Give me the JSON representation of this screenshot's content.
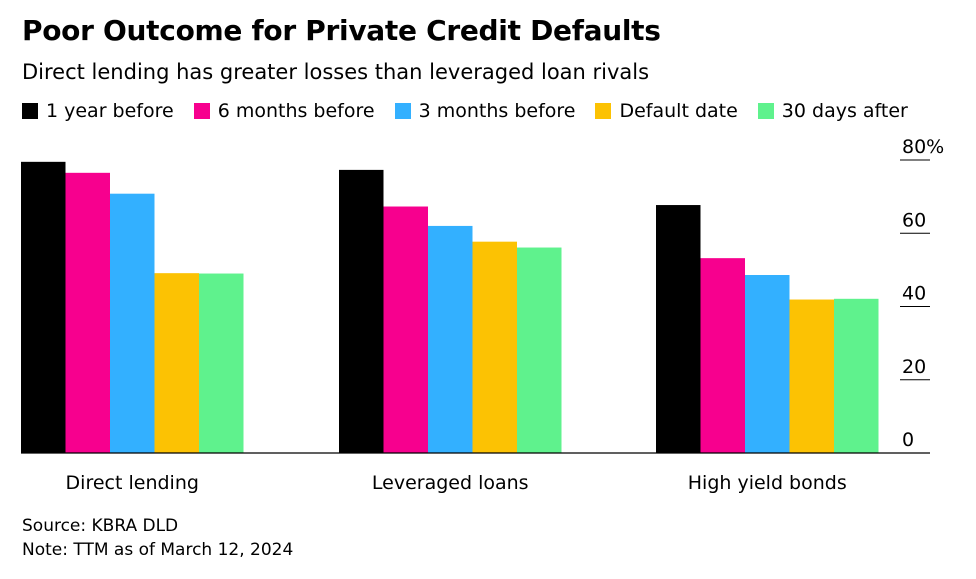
{
  "header": {
    "title": "Poor Outcome for Private Credit Defaults",
    "subtitle": "Direct lending has greater losses than leveraged loan rivals"
  },
  "legend": [
    {
      "name": "1 year before",
      "color": "#000000"
    },
    {
      "name": "6 months before",
      "color": "#f7008e"
    },
    {
      "name": "3 months before",
      "color": "#33b0ff"
    },
    {
      "name": "Default date",
      "color": "#fcc203"
    },
    {
      "name": "30 days after",
      "color": "#5ff28d"
    }
  ],
  "chart_data": {
    "type": "bar",
    "categories": [
      "Direct lending",
      "Leveraged loans",
      "High yield bonds"
    ],
    "series": [
      {
        "name": "1 year before",
        "color": "#000000",
        "values": [
          79.5,
          77.3,
          67.7
        ]
      },
      {
        "name": "6 months before",
        "color": "#f7008e",
        "values": [
          76.5,
          67.3,
          53.2
        ]
      },
      {
        "name": "3 months before",
        "color": "#33b0ff",
        "values": [
          70.8,
          62.0,
          48.6
        ]
      },
      {
        "name": "Default date",
        "color": "#fcc203",
        "values": [
          49.1,
          57.7,
          41.9
        ]
      },
      {
        "name": "30 days after",
        "color": "#5ff28d",
        "values": [
          49.0,
          56.1,
          42.1
        ]
      }
    ],
    "y_ticks": [
      "0",
      "20",
      "40",
      "60",
      "80%"
    ],
    "ylim": [
      0,
      80
    ],
    "axis_position": "right",
    "grid": false
  },
  "footer": {
    "source": "Source: KBRA DLD",
    "note": "Note: TTM as of March 12, 2024"
  }
}
